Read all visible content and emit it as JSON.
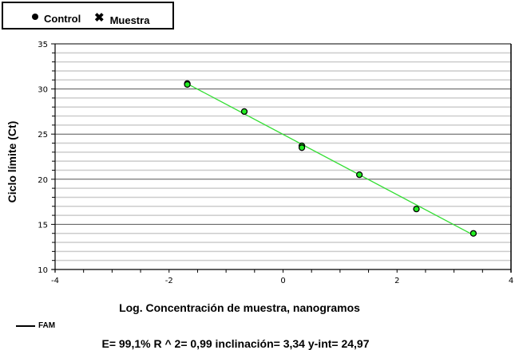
{
  "legend": {
    "items": [
      {
        "marker": "dot-icon",
        "label": "Control"
      },
      {
        "marker": "cross-icon",
        "label": "Muestra"
      }
    ]
  },
  "series_legend": {
    "label": "FAM"
  },
  "stats_text": "E= 99,1% R ^ 2= 0,99 inclinación= 3,34 y-int= 24,97",
  "colors": {
    "line": "#33dd33",
    "point_fill": "#22ee22",
    "point_stroke": "#000000",
    "major_grid": "#555555",
    "minor_grid": "#cccccc"
  },
  "chart_data": {
    "type": "scatter",
    "title": "",
    "xlabel": "Log. Concentración de muestra, nanogramos",
    "ylabel": "Ciclo límite (Ct)",
    "xlim": [
      -4,
      4
    ],
    "ylim": [
      10,
      35
    ],
    "x_ticks": [
      -4,
      -2,
      0,
      2,
      4
    ],
    "y_ticks": [
      10,
      15,
      20,
      25,
      30,
      35
    ],
    "grid": true,
    "legend_position": "top-left",
    "series": [
      {
        "name": "FAM",
        "points": [
          {
            "x": -1.68,
            "y": 30.6
          },
          {
            "x": -1.68,
            "y": 30.5
          },
          {
            "x": -0.68,
            "y": 27.5
          },
          {
            "x": 0.33,
            "y": 23.7
          },
          {
            "x": 0.33,
            "y": 23.5
          },
          {
            "x": 1.34,
            "y": 20.5
          },
          {
            "x": 2.34,
            "y": 16.7
          },
          {
            "x": 3.34,
            "y": 14.0
          }
        ],
        "fit": {
          "slope": -3.34,
          "intercept": 24.97,
          "r2": 0.99,
          "efficiency": "99,1%",
          "x_range": [
            -1.68,
            3.34
          ]
        }
      }
    ]
  }
}
